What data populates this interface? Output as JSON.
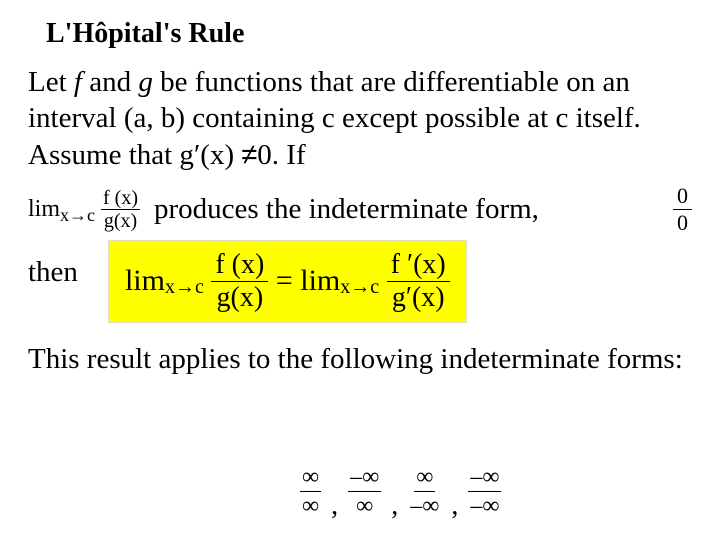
{
  "title": "L'Hôpital's Rule",
  "paragraph": {
    "p1": "Let ",
    "f": "f",
    "p2": " and ",
    "g": "g",
    "p3": " be functions that are differentiable on an interval (a, b) containing c except possible at c itself. Assume that g",
    "prime": "′",
    "p4": "(x) ",
    "neq": "≠",
    "p5": "0. If"
  },
  "lim1": {
    "lim": "lim",
    "sub": "x→c",
    "num": "f (x)",
    "den": "g(x)"
  },
  "indet_text": "produces the indeterminate form,",
  "zero_frac": {
    "num": "0",
    "den": "0"
  },
  "then": "then",
  "formula": {
    "lim": "lim",
    "sub": "x→c",
    "lhs_num": "f (x)",
    "lhs_den": "g(x)",
    "eq": "=",
    "rhs_num": "f ′(x)",
    "rhs_den": "g′(x)"
  },
  "applies": "This result applies to the following indeterminate forms:",
  "forms": [
    {
      "num": "∞",
      "den": "∞"
    },
    {
      "num": "–∞",
      "den": "∞"
    },
    {
      "num": "∞",
      "den": "–∞"
    },
    {
      "num": "–∞",
      "den": "–∞"
    }
  ],
  "colors": {
    "highlight_bg": "#ffff00",
    "text": "#000000",
    "page_bg": "#ffffff"
  },
  "typography": {
    "title_fontsize": 28,
    "body_fontsize": 29,
    "formula_fontsize": 30,
    "font_family": "Times New Roman"
  }
}
